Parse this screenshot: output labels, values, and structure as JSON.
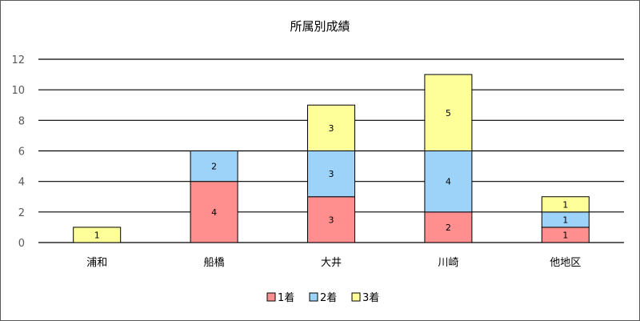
{
  "chart_data": {
    "type": "bar",
    "stacked": true,
    "title": "所属別成績",
    "xlabel": "",
    "ylabel": "",
    "categories": [
      "浦和",
      "船橋",
      "大井",
      "川崎",
      "他地区"
    ],
    "series": [
      {
        "name": "1着",
        "values": [
          0,
          4,
          3,
          2,
          1
        ],
        "color": "#FF8F8F"
      },
      {
        "name": "2着",
        "values": [
          0,
          2,
          3,
          4,
          1
        ],
        "color": "#9DD3F9"
      },
      {
        "name": "3着",
        "values": [
          1,
          0,
          3,
          5,
          1
        ],
        "color": "#FFFF99"
      }
    ],
    "ylim": [
      0,
      12
    ],
    "yticks": [
      0,
      2,
      4,
      6,
      8,
      10,
      12
    ],
    "grid": true,
    "legend": "bottom"
  }
}
